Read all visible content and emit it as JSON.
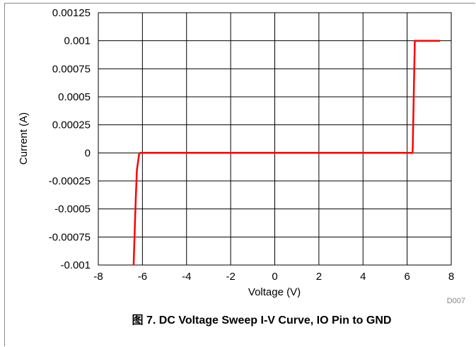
{
  "chart_data": {
    "type": "line",
    "caption": "图 7. DC Voltage Sweep I-V Curve, IO Pin to GND",
    "figure_code": "D007",
    "xlabel": "Voltage (V)",
    "ylabel": "Current (A)",
    "xlim": [
      -8,
      8
    ],
    "ylim": [
      -0.001,
      0.00125
    ],
    "grid": true,
    "x_ticks": [
      "-8",
      "-6",
      "-4",
      "-2",
      "0",
      "2",
      "4",
      "6",
      "8"
    ],
    "y_ticks": [
      "0.00125",
      "0.001",
      "0.00075",
      "0.0005",
      "0.00025",
      "0",
      "-0.00025",
      "-0.0005",
      "-0.00075",
      "-0.001"
    ],
    "series": [
      {
        "color": "#ff0000",
        "x": [
          -6.4,
          -6.3,
          -6.25,
          -6.15,
          -6.1,
          6.2,
          6.25,
          6.35,
          7.5
        ],
        "y": [
          -0.001,
          -0.0004,
          -0.00015,
          -1e-05,
          0,
          0,
          0,
          0.001,
          0.001
        ]
      }
    ]
  }
}
